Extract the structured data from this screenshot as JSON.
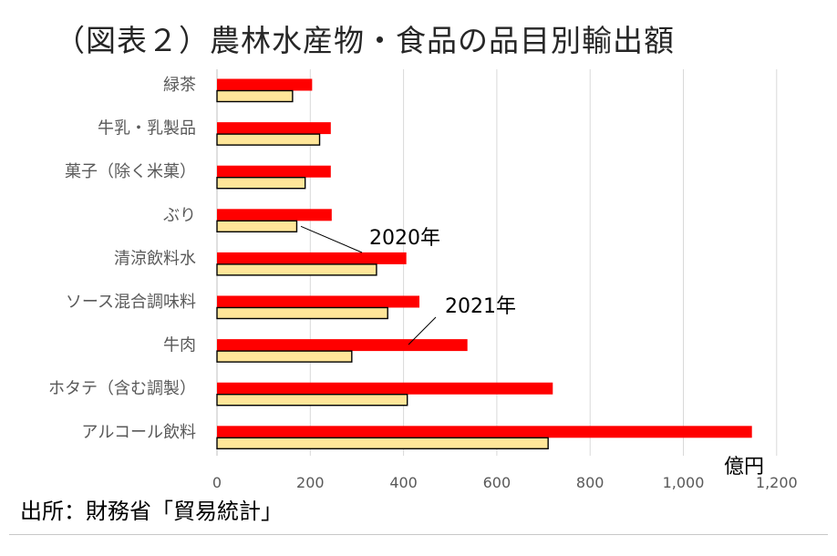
{
  "chart_data": {
    "type": "bar",
    "orientation": "horizontal",
    "title": "（図表２）農林水産物・食品の品目別輸出額",
    "categories": [
      "緑茶",
      "牛乳・乳製品",
      "菓子（除く米菓）",
      "ぶり",
      "清涼飲料水",
      "ソース混合調味料",
      "牛肉",
      "ホタテ（含む調製）",
      "アルコール飲料"
    ],
    "series": [
      {
        "name": "2021年",
        "values": [
          204,
          244,
          244,
          246,
          406,
          434,
          537,
          720,
          1147
        ]
      },
      {
        "name": "2020年",
        "values": [
          162,
          220,
          189,
          171,
          342,
          366,
          289,
          408,
          710
        ]
      }
    ],
    "x_ticks": [
      "0",
      "200",
      "400",
      "600",
      "800",
      "1,000",
      "1,200"
    ],
    "xlim": [
      0,
      1200
    ],
    "unit": "億円",
    "grid": true,
    "colors": {
      "2021年": "#ff0000",
      "2020年": "#ffe699"
    }
  },
  "source": "出所：財務省「貿易統計」"
}
